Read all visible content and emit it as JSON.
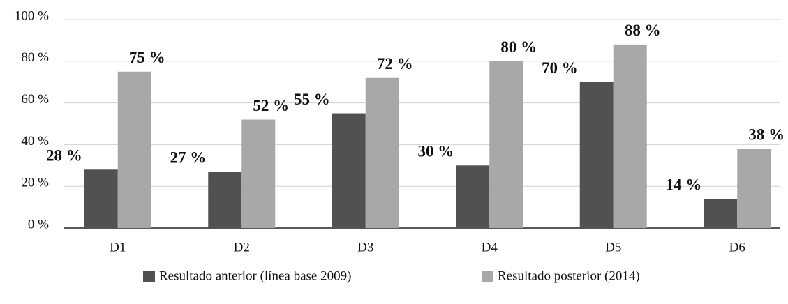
{
  "chart_data": {
    "type": "bar",
    "categories": [
      "D1",
      "D2",
      "D3",
      "D4",
      "D5",
      "D6"
    ],
    "series": [
      {
        "name": "Resultado anterior (línea base 2009)",
        "color": "#505150",
        "values": [
          28,
          27,
          55,
          30,
          70,
          14
        ],
        "value_labels": [
          "28 %",
          "27 %",
          "55 %",
          "30 %",
          "70 %",
          "14 %"
        ]
      },
      {
        "name": "Resultado posterior (2014)",
        "color": "#a7a9a9",
        "values": [
          75,
          52,
          72,
          80,
          88,
          38
        ],
        "value_labels": [
          "75 %",
          "52 %",
          "72 %",
          "80 %",
          "88 %",
          "38 %"
        ]
      }
    ],
    "ylim": [
      0,
      100
    ],
    "yticks": [
      {
        "value": 0,
        "label": "0 %"
      },
      {
        "value": 20,
        "label": "20 %"
      },
      {
        "value": 40,
        "label": "40 %"
      },
      {
        "value": 60,
        "label": "60 %"
      },
      {
        "value": 80,
        "label": "80 %"
      },
      {
        "value": 100,
        "label": "100 %"
      }
    ],
    "grid": true,
    "legend": "bottom"
  }
}
